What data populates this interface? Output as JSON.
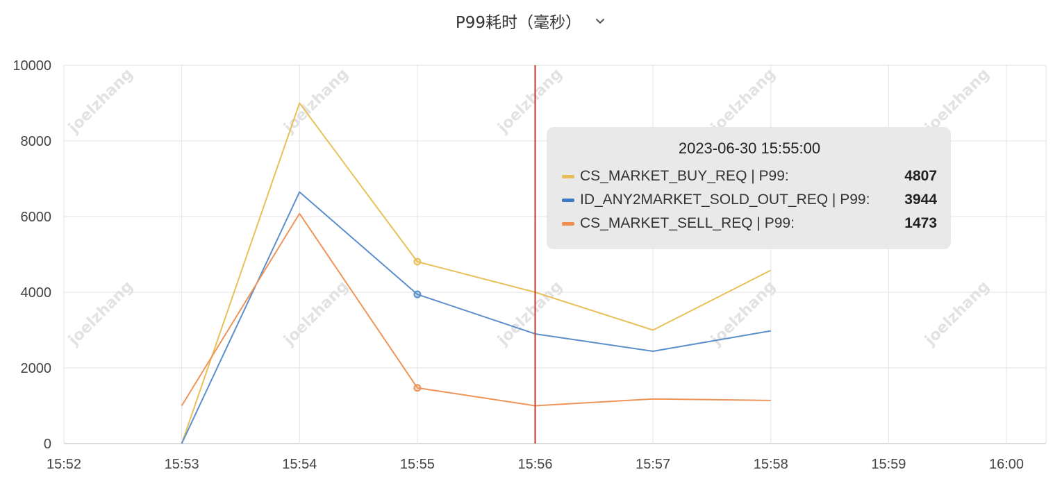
{
  "header": {
    "title": "P99耗时（毫秒）",
    "dropdown_icon": "chevron-down-icon"
  },
  "watermark_text": "joelzhang",
  "tooltip": {
    "title": "2023-06-30 15:55:00",
    "rows": [
      {
        "label": "CS_MARKET_BUY_REQ | P99:",
        "value": "4807",
        "color": "#e8bc56"
      },
      {
        "label": "ID_ANY2MARKET_SOLD_OUT_REQ | P99:",
        "value": "3944",
        "color": "#3e7ac4"
      },
      {
        "label": "CS_MARKET_SELL_REQ | P99:",
        "value": "1473",
        "color": "#ef8c4f"
      }
    ]
  },
  "chart_data": {
    "type": "line",
    "title": "P99耗时（毫秒）",
    "x_ticks": [
      "15:52",
      "15:53",
      "15:54",
      "15:55",
      "15:56",
      "15:57",
      "15:58",
      "15:59",
      "16:00"
    ],
    "y_ticks": [
      0,
      2000,
      4000,
      6000,
      8000,
      10000
    ],
    "ylim": [
      0,
      10000
    ],
    "grid": true,
    "cursor_x": "15:56",
    "cursor_color": "#c0392b",
    "highlight_x": "15:55",
    "series": [
      {
        "name": "CS_MARKET_BUY_REQ",
        "color": "#e8c05a",
        "x": [
          "15:53",
          "15:54",
          "15:55",
          "15:56",
          "15:57",
          "15:58"
        ],
        "values": [
          0,
          9000,
          4807,
          4000,
          3000,
          4580
        ]
      },
      {
        "name": "ID_ANY2MARKET_SOLD_OUT_REQ",
        "color": "#5a8fcb",
        "x": [
          "15:53",
          "15:54",
          "15:55",
          "15:56",
          "15:57",
          "15:58"
        ],
        "values": [
          0,
          6650,
          3944,
          2900,
          2440,
          2980
        ]
      },
      {
        "name": "CS_MARKET_SELL_REQ",
        "color": "#ef9458",
        "x": [
          "15:53",
          "15:54",
          "15:55",
          "15:56",
          "15:57",
          "15:58"
        ],
        "values": [
          1000,
          6080,
          1473,
          1000,
          1180,
          1140
        ]
      }
    ]
  }
}
